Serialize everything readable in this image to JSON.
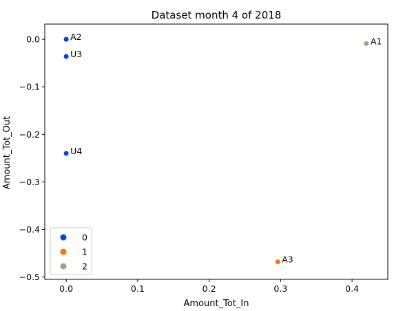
{
  "chart_data": {
    "type": "scatter",
    "title": "Dataset month 4 of 2018",
    "xlabel": "Amount_Tot_In",
    "ylabel": "Amount_Tot_Out",
    "xlim": [
      -0.03,
      0.45
    ],
    "ylim": [
      -0.505,
      0.032
    ],
    "xticks": [
      0.0,
      0.1,
      0.2,
      0.3,
      0.4
    ],
    "xtick_labels": [
      "0.0",
      "0.1",
      "0.2",
      "0.3",
      "0.4"
    ],
    "yticks": [
      0.0,
      -0.1,
      -0.2,
      -0.3,
      -0.4,
      -0.5
    ],
    "ytick_labels": [
      "0.0",
      "−0.1",
      "−0.2",
      "−0.3",
      "−0.4",
      "−0.5"
    ],
    "grid": false,
    "legend": {
      "placement": "lower-left",
      "entries": [
        {
          "label": "0",
          "color": "#0343df"
        },
        {
          "label": "1",
          "color": "#f97306"
        },
        {
          "label": "2",
          "color": "#a39e8e"
        }
      ]
    },
    "points": [
      {
        "label": "A2",
        "x": 0.0,
        "y": 0.0,
        "group": "0"
      },
      {
        "label": "U3",
        "x": 0.0,
        "y": -0.036,
        "group": "0"
      },
      {
        "label": "U4",
        "x": 0.0,
        "y": -0.24,
        "group": "0"
      },
      {
        "label": "A3",
        "x": 0.296,
        "y": -0.468,
        "group": "1"
      },
      {
        "label": "A1",
        "x": 0.42,
        "y": -0.009,
        "group": "2"
      }
    ]
  }
}
